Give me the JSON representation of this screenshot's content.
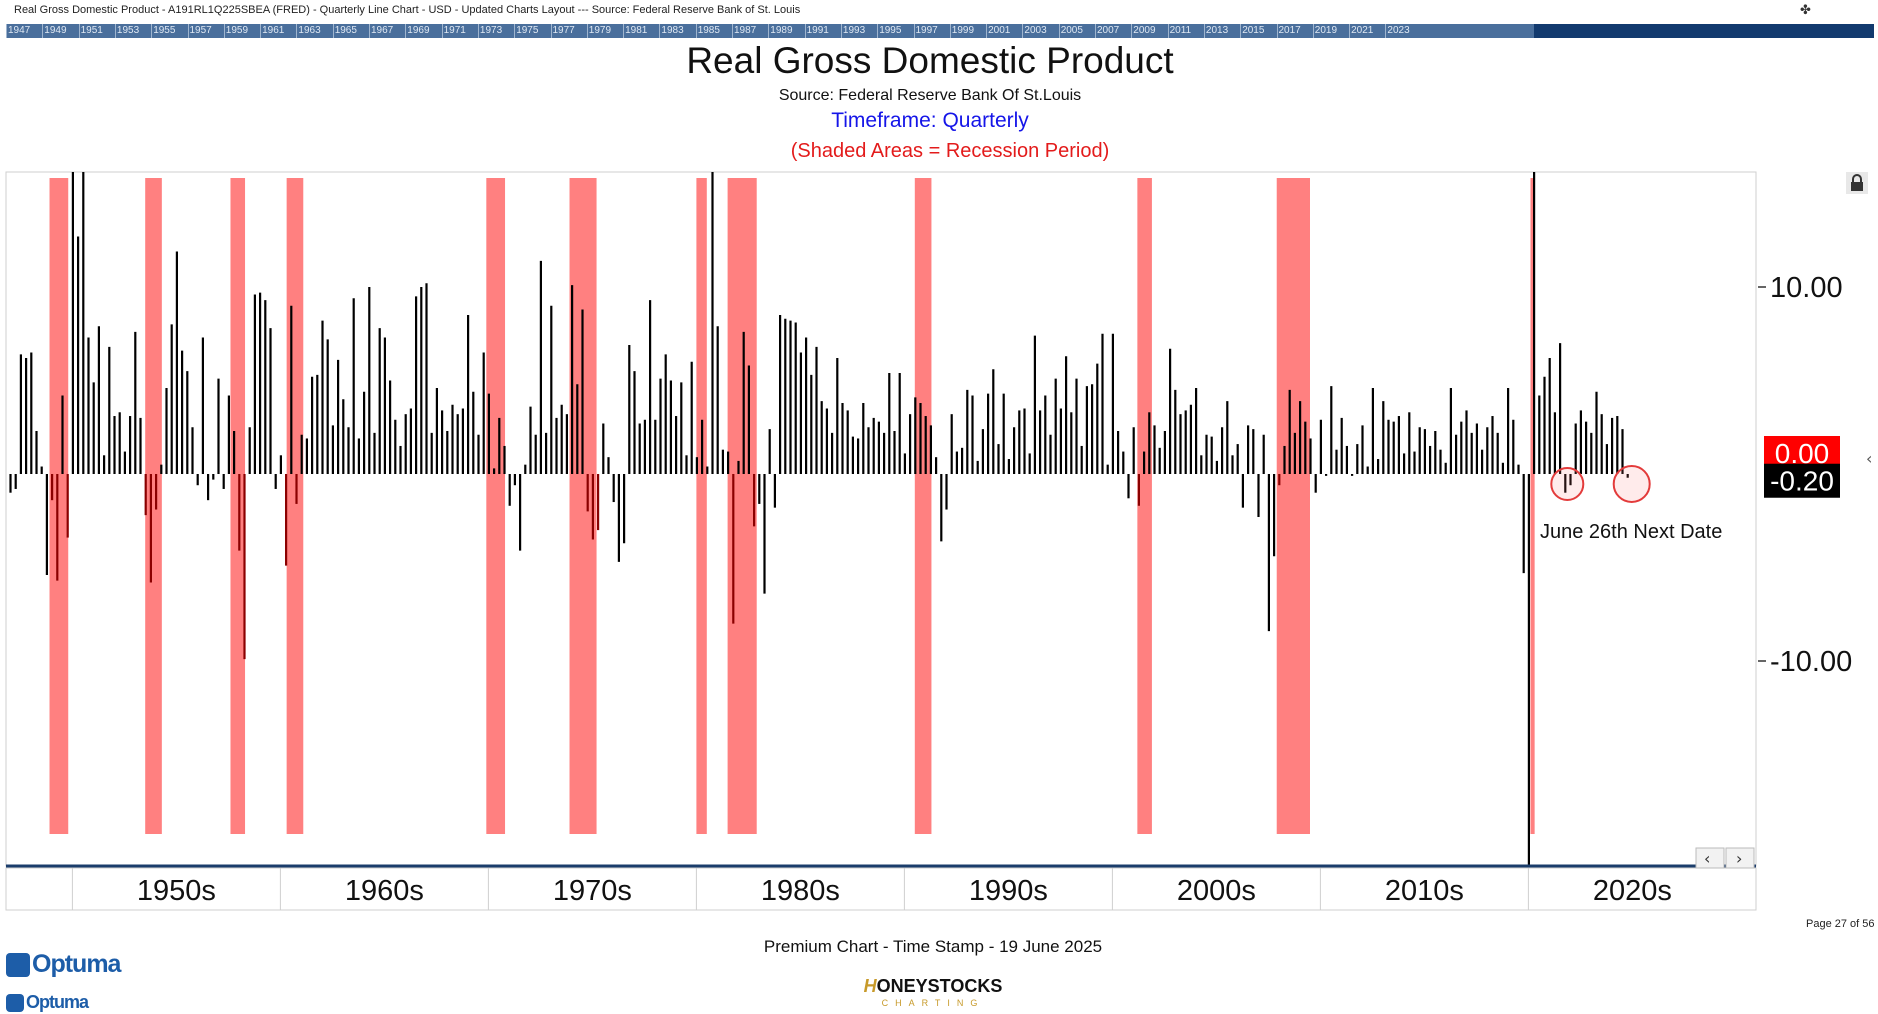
{
  "header": {
    "top_caption": "Real Gross Domestic Product - A191RL1Q225SBEA (FRED) - Quarterly Line Chart - USD - Updated Charts Layout --- Source: Federal Reserve Bank of St. Louis",
    "year_strip": [
      "1947",
      "1949",
      "1951",
      "1953",
      "1955",
      "1957",
      "1959",
      "1961",
      "1963",
      "1965",
      "1967",
      "1969",
      "1971",
      "1973",
      "1975",
      "1977",
      "1979",
      "1981",
      "1983",
      "1985",
      "1987",
      "1989",
      "1991",
      "1993",
      "1995",
      "1997",
      "1999",
      "2001",
      "2003",
      "2005",
      "2007",
      "2009",
      "2011",
      "2013",
      "2015",
      "2017",
      "2019",
      "2021",
      "2023"
    ]
  },
  "chart_data": {
    "type": "bar",
    "title": "Real Gross Domestic Product",
    "source": "Source: Federal Reserve Bank Of St.Louis",
    "timeframe": "Timeframe: Quarterly",
    "shading_note": "(Shaded Areas = Recession Period)",
    "ylim": [
      -20,
      16
    ],
    "y_ticks": [
      {
        "value": 10,
        "label": "10.00"
      },
      {
        "value": -10,
        "label": "-10.00"
      }
    ],
    "x_labels": [
      "1950s",
      "1960s",
      "1970s",
      "1980s",
      "1990s",
      "2000s",
      "2010s",
      "2020s"
    ],
    "start_year": 1947,
    "recessions": [
      [
        1948.9,
        1949.8
      ],
      [
        1953.5,
        1954.3
      ],
      [
        1957.6,
        1958.3
      ],
      [
        1960.3,
        1961.1
      ],
      [
        1969.9,
        1970.8
      ],
      [
        1973.9,
        1975.2
      ],
      [
        1980.0,
        1980.5
      ],
      [
        1981.5,
        1982.9
      ],
      [
        1990.5,
        1991.3
      ],
      [
        2001.2,
        2001.9
      ],
      [
        2007.9,
        2009.5
      ],
      [
        2020.1,
        2020.3
      ]
    ],
    "quarterly_growth_pct": [
      -1.0,
      -0.8,
      6.4,
      6.2,
      6.5,
      2.3,
      0.4,
      -5.4,
      -1.4,
      -5.7,
      4.2,
      -3.4,
      16.9,
      12.7,
      16.6,
      7.3,
      4.9,
      7.9,
      1.0,
      6.8,
      3.1,
      3.3,
      1.2,
      3.1,
      7.6,
      3.0,
      -2.2,
      -5.8,
      -1.9,
      0.5,
      4.6,
      8.0,
      11.9,
      6.6,
      5.5,
      2.5,
      -0.6,
      7.3,
      -1.4,
      -0.3,
      5.1,
      -0.8,
      4.2,
      2.3,
      -4.1,
      -9.9,
      2.5,
      9.6,
      9.7,
      9.3,
      7.8,
      -0.8,
      1.0,
      -4.9,
      9.0,
      -1.6,
      2.1,
      1.9,
      5.2,
      5.3,
      8.2,
      7.2,
      2.6,
      6.1,
      4.0,
      2.5,
      9.4,
      1.9,
      4.4,
      10.0,
      2.2,
      7.8,
      7.3,
      5.0,
      2.9,
      1.5,
      3.2,
      3.5,
      9.5,
      10.0,
      10.2,
      2.2,
      4.6,
      3.4,
      2.3,
      3.7,
      3.2,
      3.5,
      8.5,
      4.4,
      2.1,
      6.5,
      4.3,
      0.3,
      3.0,
      1.5,
      -1.7,
      -0.6,
      -4.1,
      0.5,
      3.6,
      2.1,
      11.4,
      2.2,
      9.0,
      3.0,
      3.7,
      3.2,
      10.1,
      4.8,
      8.8,
      -2.0,
      -3.5,
      -3.0,
      2.7,
      0.9,
      -1.5,
      -4.7,
      -3.7,
      6.9,
      5.5,
      2.7,
      2.9,
      9.3,
      2.9,
      5.1,
      6.4,
      5.0,
      3.1,
      4.9,
      1.0,
      6.0,
      0.9,
      2.9,
      0.4,
      16.3,
      7.9,
      1.3,
      1.2,
      -8.0,
      0.7,
      7.6,
      5.8,
      -2.8,
      -1.6,
      -6.4,
      2.4,
      -1.8,
      8.5,
      8.3,
      8.2,
      8.1,
      6.5,
      7.3,
      5.3,
      6.8,
      3.9,
      3.5,
      2.2,
      6.2,
      3.8,
      3.4,
      2.0,
      1.9,
      3.8,
      2.5,
      3.0,
      2.8,
      2.2,
      5.4,
      2.3,
      5.4,
      1.1,
      3.2,
      4.1,
      3.8,
      3.1,
      2.6,
      0.9,
      -3.6,
      -1.9,
      3.2,
      1.2,
      1.4,
      4.5,
      4.2,
      0.7,
      2.4,
      4.3,
      5.6,
      1.6,
      4.3,
      0.8,
      2.5,
      3.4,
      3.5,
      1.1,
      7.4,
      3.4,
      4.2,
      2.1,
      5.1,
      3.5,
      6.3,
      3.3,
      5.1,
      1.5,
      4.7,
      4.8,
      5.9,
      7.5,
      0.5,
      7.5,
      2.3,
      1.2,
      -1.3,
      2.5,
      -1.7,
      1.2,
      3.3,
      2.6,
      1.4,
      2.3,
      6.7,
      4.5,
      3.2,
      3.4,
      3.7,
      4.6,
      1.0,
      2.1,
      2.0,
      0.7,
      2.5,
      3.9,
      1.0,
      1.6,
      -1.8,
      2.6,
      2.4,
      -2.3,
      2.1,
      -8.4,
      -4.4,
      -0.6,
      1.5,
      4.5,
      2.2,
      3.9,
      2.8,
      1.9,
      -1.0,
      2.9,
      -0.1,
      4.7,
      1.3,
      3.0,
      1.5,
      -0.1,
      1.6,
      2.6,
      0.4,
      4.6,
      0.8,
      3.9,
      2.9,
      2.8,
      3.1,
      1.1,
      3.3,
      1.2,
      2.5,
      2.4,
      1.5,
      2.3,
      1.3,
      0.6,
      4.6,
      2.1,
      2.8,
      3.4,
      2.2,
      2.7,
      1.3,
      2.5,
      3.1,
      2.2,
      0.6,
      4.6,
      2.9,
      0.5,
      -5.3,
      -28.0,
      34.9,
      4.2,
      5.2,
      6.2,
      3.3,
      7.0,
      -1.0,
      -0.6,
      2.7,
      3.4,
      2.8,
      2.2,
      4.4,
      3.2,
      1.6,
      3.0,
      3.1,
      2.4,
      -0.2
    ],
    "current_value": -0.2,
    "current_value_label": "-0.20",
    "zero_label": "0.00",
    "annotation": "June 26th Next Date",
    "colors": {
      "bar": "#000000",
      "recession_bar": "#8b0000",
      "shade": "#ff8080",
      "zero_tag": "#ff0000",
      "value_tag": "#000000",
      "circle": "#e33b3b",
      "axis": "#1b3d6b"
    }
  },
  "footer": {
    "page": "Page 27 of 56",
    "timestamp": "Premium Chart - Time Stamp - 19 June 2025",
    "optuma": "Optuma",
    "brand_main": "ONEYSTOCKS",
    "brand_h": "H",
    "brand_sub": "CHARTING"
  }
}
